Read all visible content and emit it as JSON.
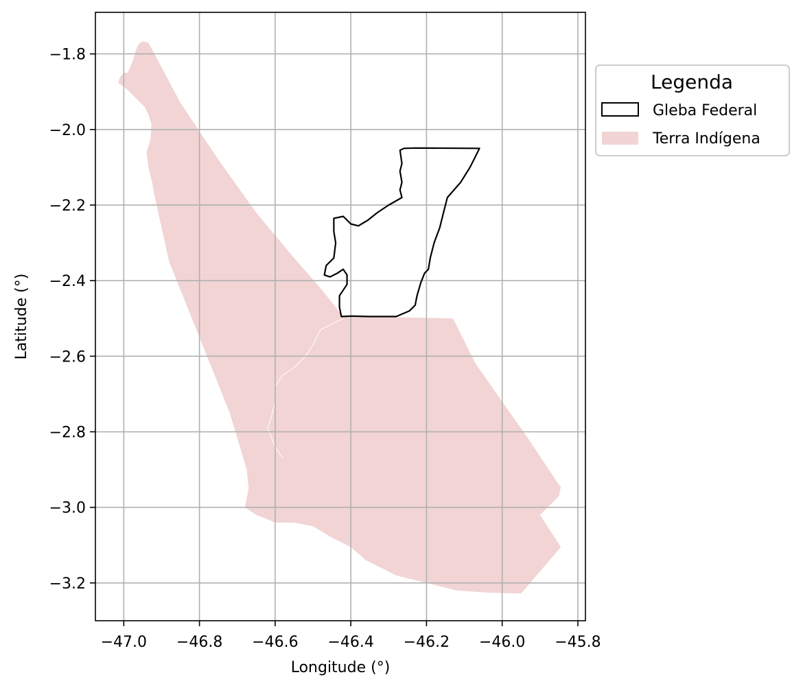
{
  "chart_data": {
    "type": "map",
    "xlabel": "Longitude (°)",
    "ylabel": "Latitude (°)",
    "xlim": [
      -47.075,
      -45.78
    ],
    "ylim": [
      -3.3,
      -1.69
    ],
    "xticks": [
      -47.0,
      -46.8,
      -46.6,
      -46.4,
      -46.2,
      -46.0,
      -45.8
    ],
    "xtick_labels": [
      "−47.0",
      "−46.8",
      "−46.6",
      "−46.4",
      "−46.2",
      "−46.0",
      "−45.8"
    ],
    "yticks": [
      -1.8,
      -2.0,
      -2.2,
      -2.4,
      -2.6,
      -2.8,
      -3.0,
      -3.2
    ],
    "ytick_labels": [
      "−1.8",
      "−2.0",
      "−2.2",
      "−2.4",
      "−2.6",
      "−2.8",
      "−3.0",
      "−3.2"
    ],
    "grid": true,
    "legend": {
      "title": "Legenda",
      "placement": "outside-upper-right",
      "entries": [
        {
          "label": "Gleba Federal",
          "style": "outline"
        },
        {
          "label": "Terra Indígena",
          "style": "fill"
        }
      ]
    },
    "colors": {
      "terra_indigena_fill": "#f2d4d4",
      "gleba_outline": "#000000",
      "grid": "#b0b0b0"
    },
    "layers": [
      {
        "name": "Terra Indígena",
        "style": "fill",
        "coordinates": [
          [
            -46.935,
            -1.77
          ],
          [
            -46.95,
            -1.767
          ],
          [
            -46.96,
            -1.773
          ],
          [
            -46.968,
            -1.79
          ],
          [
            -46.975,
            -1.815
          ],
          [
            -46.985,
            -1.84
          ],
          [
            -46.99,
            -1.85
          ],
          [
            -47.0,
            -1.85
          ],
          [
            -47.01,
            -1.862
          ],
          [
            -47.015,
            -1.876
          ],
          [
            -47.003,
            -1.885
          ],
          [
            -46.99,
            -1.895
          ],
          [
            -46.975,
            -1.91
          ],
          [
            -46.96,
            -1.925
          ],
          [
            -46.945,
            -1.94
          ],
          [
            -46.935,
            -1.96
          ],
          [
            -46.927,
            -1.985
          ],
          [
            -46.928,
            -2.01
          ],
          [
            -46.93,
            -2.03
          ],
          [
            -46.94,
            -2.06
          ],
          [
            -46.935,
            -2.1
          ],
          [
            -46.925,
            -2.14
          ],
          [
            -46.92,
            -2.17
          ],
          [
            -46.9,
            -2.26
          ],
          [
            -46.88,
            -2.35
          ],
          [
            -46.84,
            -2.45
          ],
          [
            -46.8,
            -2.55
          ],
          [
            -46.76,
            -2.65
          ],
          [
            -46.72,
            -2.75
          ],
          [
            -46.69,
            -2.85
          ],
          [
            -46.675,
            -2.9
          ],
          [
            -46.67,
            -2.95
          ],
          [
            -46.68,
            -3.0
          ],
          [
            -46.65,
            -3.02
          ],
          [
            -46.6,
            -3.04
          ],
          [
            -46.55,
            -3.04
          ],
          [
            -46.5,
            -3.05
          ],
          [
            -46.45,
            -3.08
          ],
          [
            -46.4,
            -3.105
          ],
          [
            -46.36,
            -3.14
          ],
          [
            -46.32,
            -3.16
          ],
          [
            -46.28,
            -3.18
          ],
          [
            -46.2,
            -3.2
          ],
          [
            -46.12,
            -3.22
          ],
          [
            -46.03,
            -3.226
          ],
          [
            -45.95,
            -3.228
          ],
          [
            -45.845,
            -3.105
          ],
          [
            -45.9,
            -3.02
          ],
          [
            -45.85,
            -2.97
          ],
          [
            -45.845,
            -2.945
          ],
          [
            -45.85,
            -2.94
          ],
          [
            -45.93,
            -2.82
          ],
          [
            -46.0,
            -2.72
          ],
          [
            -46.07,
            -2.62
          ],
          [
            -46.13,
            -2.5
          ],
          [
            -46.28,
            -2.497
          ],
          [
            -46.42,
            -2.497
          ],
          [
            -46.44,
            -2.47
          ],
          [
            -46.48,
            -2.42
          ],
          [
            -46.55,
            -2.34
          ],
          [
            -46.65,
            -2.22
          ],
          [
            -46.75,
            -2.08
          ],
          [
            -46.85,
            -1.93
          ],
          [
            -46.935,
            -1.77
          ]
        ]
      },
      {
        "name": "Gleba Federal",
        "style": "outline",
        "coordinates": [
          [
            -46.28,
            -2.495
          ],
          [
            -46.245,
            -2.48
          ],
          [
            -46.23,
            -2.465
          ],
          [
            -46.225,
            -2.44
          ],
          [
            -46.215,
            -2.405
          ],
          [
            -46.205,
            -2.38
          ],
          [
            -46.195,
            -2.37
          ],
          [
            -46.19,
            -2.34
          ],
          [
            -46.18,
            -2.3
          ],
          [
            -46.165,
            -2.26
          ],
          [
            -46.155,
            -2.22
          ],
          [
            -46.145,
            -2.18
          ],
          [
            -46.11,
            -2.14
          ],
          [
            -46.085,
            -2.1
          ],
          [
            -46.075,
            -2.08
          ],
          [
            -46.06,
            -2.05
          ],
          [
            -46.23,
            -2.049
          ],
          [
            -46.26,
            -2.05
          ],
          [
            -46.27,
            -2.055
          ],
          [
            -46.265,
            -2.09
          ],
          [
            -46.27,
            -2.11
          ],
          [
            -46.265,
            -2.14
          ],
          [
            -46.27,
            -2.16
          ],
          [
            -46.265,
            -2.18
          ],
          [
            -46.3,
            -2.2
          ],
          [
            -46.33,
            -2.22
          ],
          [
            -46.355,
            -2.24
          ],
          [
            -46.38,
            -2.255
          ],
          [
            -46.4,
            -2.25
          ],
          [
            -46.42,
            -2.23
          ],
          [
            -46.445,
            -2.235
          ],
          [
            -46.445,
            -2.27
          ],
          [
            -46.44,
            -2.3
          ],
          [
            -46.445,
            -2.34
          ],
          [
            -46.465,
            -2.36
          ],
          [
            -46.47,
            -2.385
          ],
          [
            -46.455,
            -2.39
          ],
          [
            -46.435,
            -2.38
          ],
          [
            -46.42,
            -2.37
          ],
          [
            -46.41,
            -2.385
          ],
          [
            -46.41,
            -2.41
          ],
          [
            -46.43,
            -2.44
          ],
          [
            -46.43,
            -2.47
          ],
          [
            -46.425,
            -2.495
          ],
          [
            -46.4,
            -2.494
          ],
          [
            -46.35,
            -2.495
          ],
          [
            -46.28,
            -2.495
          ]
        ]
      },
      {
        "name": "Terra Indígena inner boundary",
        "style": "line",
        "coordinates": [
          [
            -46.42,
            -2.5
          ],
          [
            -46.45,
            -2.515
          ],
          [
            -46.48,
            -2.53
          ],
          [
            -46.5,
            -2.57
          ],
          [
            -46.52,
            -2.6
          ],
          [
            -46.55,
            -2.63
          ],
          [
            -46.58,
            -2.65
          ],
          [
            -46.6,
            -2.68
          ],
          [
            -46.6,
            -2.72
          ],
          [
            -46.61,
            -2.76
          ],
          [
            -46.62,
            -2.79
          ],
          [
            -46.6,
            -2.84
          ],
          [
            -46.58,
            -2.87
          ]
        ]
      }
    ]
  }
}
